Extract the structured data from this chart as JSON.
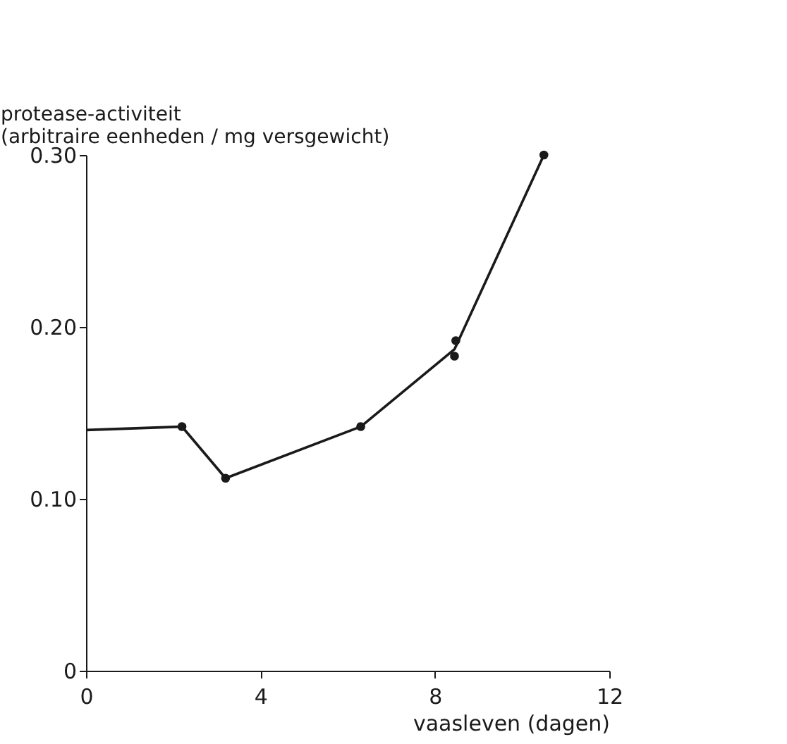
{
  "chart_data": {
    "type": "line",
    "xlabel": "vaasleven (dagen)",
    "ylabel": "protease-activiteit\n(arbitraire eenheden / mg versgewicht)",
    "series": [
      {
        "color": "#1a1a1a",
        "marker": "none",
        "x": [
          0,
          2.2,
          3.2,
          6.3,
          8.45,
          10.5
        ],
        "values": [
          0.14,
          0.142,
          0.112,
          0.142,
          0.187,
          0.3
        ]
      },
      {
        "type": "scatter",
        "color": "#1a1a1a",
        "marker": "circle",
        "x": [
          2.2,
          3.2,
          6.3,
          8.45,
          8.48,
          10.5
        ],
        "values": [
          0.142,
          0.112,
          0.142,
          0.183,
          0.192,
          0.3
        ]
      }
    ],
    "xlim": [
      0,
      12
    ],
    "xticks": [
      0,
      4,
      8,
      12
    ],
    "ylim": [
      0,
      0.3
    ],
    "yticks": [
      {
        "value": 0,
        "label": "0"
      },
      {
        "value": 0.1,
        "label": "0.10"
      },
      {
        "value": 0.2,
        "label": "0.20"
      },
      {
        "value": 0.3,
        "label": "0.30"
      }
    ],
    "grid": false,
    "line_style": "solid"
  }
}
